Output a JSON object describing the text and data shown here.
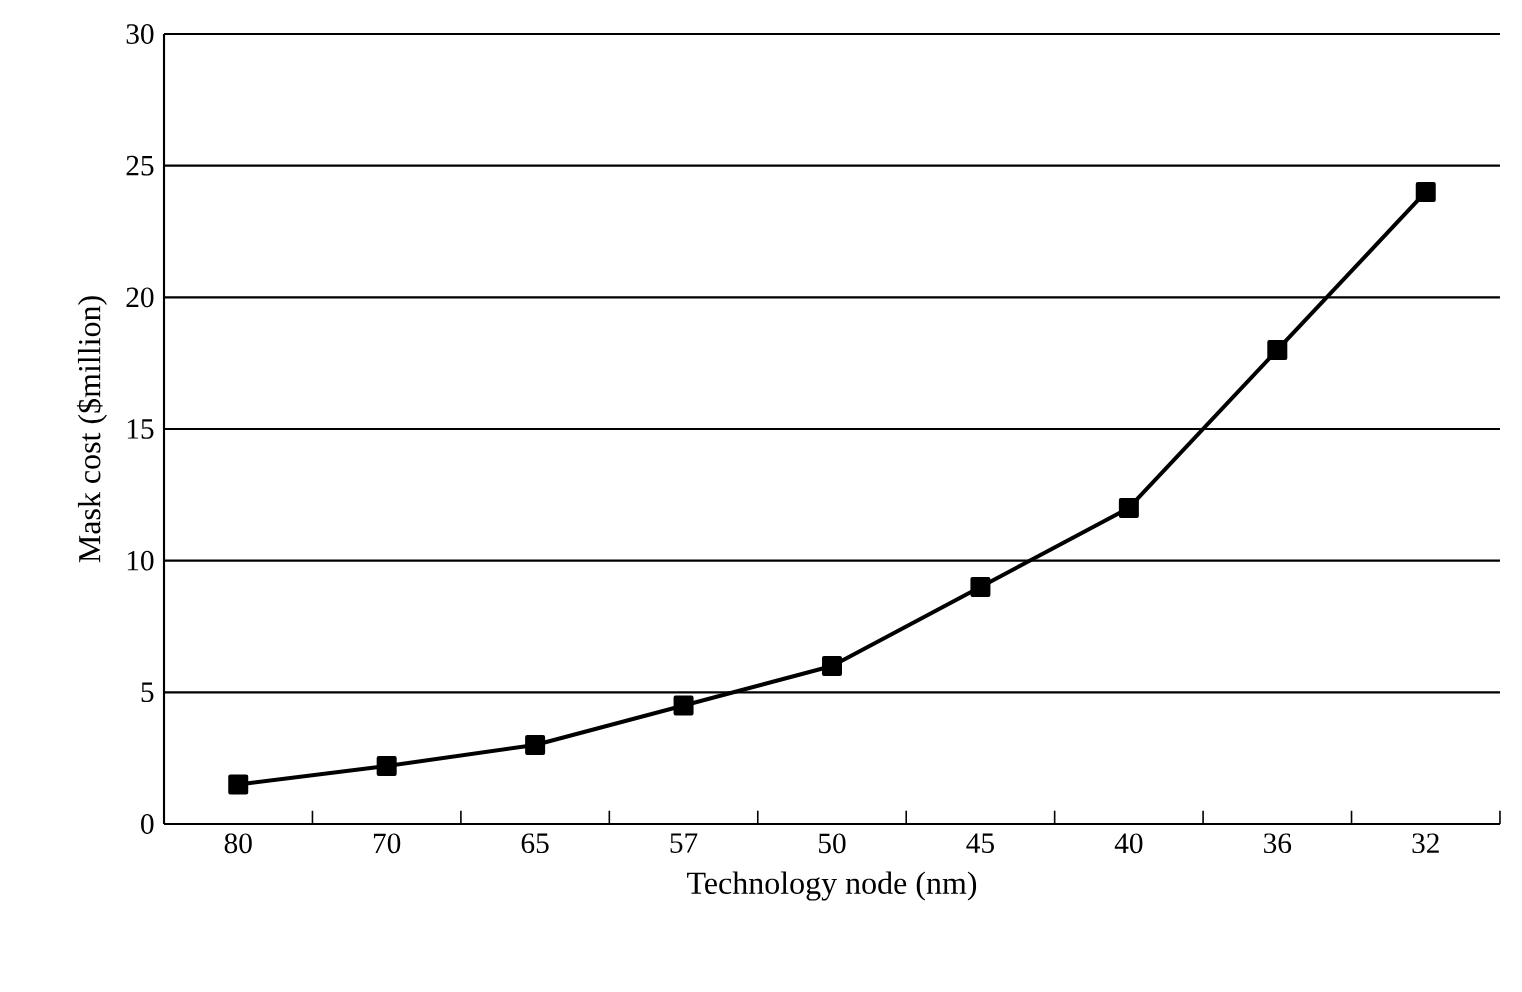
{
  "chart_data": {
    "type": "line",
    "xlabel": "Technology node (nm)",
    "ylabel": "Mask cost ($million)",
    "categories": [
      "80",
      "70",
      "65",
      "57",
      "50",
      "45",
      "40",
      "36",
      "32"
    ],
    "series": [
      {
        "color": "#000000",
        "values": [
          1.5,
          2.2,
          3,
          4.5,
          6,
          9,
          12,
          18,
          24
        ]
      }
    ],
    "ylim": [
      0,
      30
    ],
    "yticks": [
      0,
      5,
      10,
      15,
      20,
      25,
      30
    ],
    "grid": "y",
    "marker": "square",
    "line_style": "solid"
  }
}
